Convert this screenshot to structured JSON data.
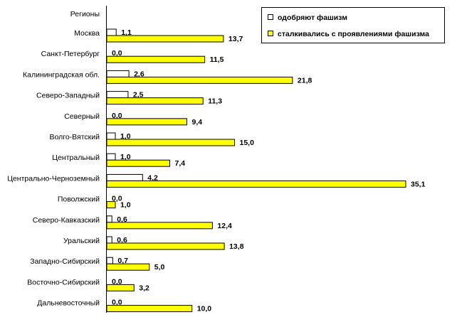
{
  "chart_data": {
    "type": "bar",
    "orientation": "horizontal",
    "header_label": "Регионы",
    "categories": [
      "Москва",
      "Санкт-Петербург",
      "Калининградская обл.",
      "Северо-Западный",
      "Северный",
      "Волго-Вятский",
      "Центральный",
      "Центрально-Черноземный",
      "Поволжский",
      "Северо-Кавказский",
      "Уральский",
      "Западно-Сибирский",
      "Восточно-Сибирский",
      "Дальневосточный"
    ],
    "series": [
      {
        "name": "одобряют фашизм",
        "color": "#ffffff",
        "values": [
          1.1,
          0.0,
          2.6,
          2.5,
          0.0,
          1.0,
          1.0,
          4.2,
          0.0,
          0.6,
          0.6,
          0.7,
          0.0,
          0.0
        ],
        "labels": [
          "1,1",
          "0,0",
          "2,6",
          "2,5",
          "0,0",
          "1,0",
          "1,0",
          "4,2",
          "0,0",
          "0,6",
          "0,6",
          "0,7",
          "0,0",
          "0,0"
        ]
      },
      {
        "name": "сталкивались с проявлениями фашизма",
        "color": "#ffff00",
        "values": [
          13.7,
          11.5,
          21.8,
          11.3,
          9.4,
          15.0,
          7.4,
          35.1,
          1.0,
          12.4,
          13.8,
          5.0,
          3.2,
          10.0
        ],
        "labels": [
          "13,7",
          "11,5",
          "21,8",
          "11,3",
          "9,4",
          "15,0",
          "7,4",
          "35,1",
          "1,0",
          "12,4",
          "13,8",
          "5,0",
          "3,2",
          "10,0"
        ]
      }
    ],
    "xlim": [
      0,
      37
    ],
    "legend_position": "top-right",
    "grid": false
  }
}
